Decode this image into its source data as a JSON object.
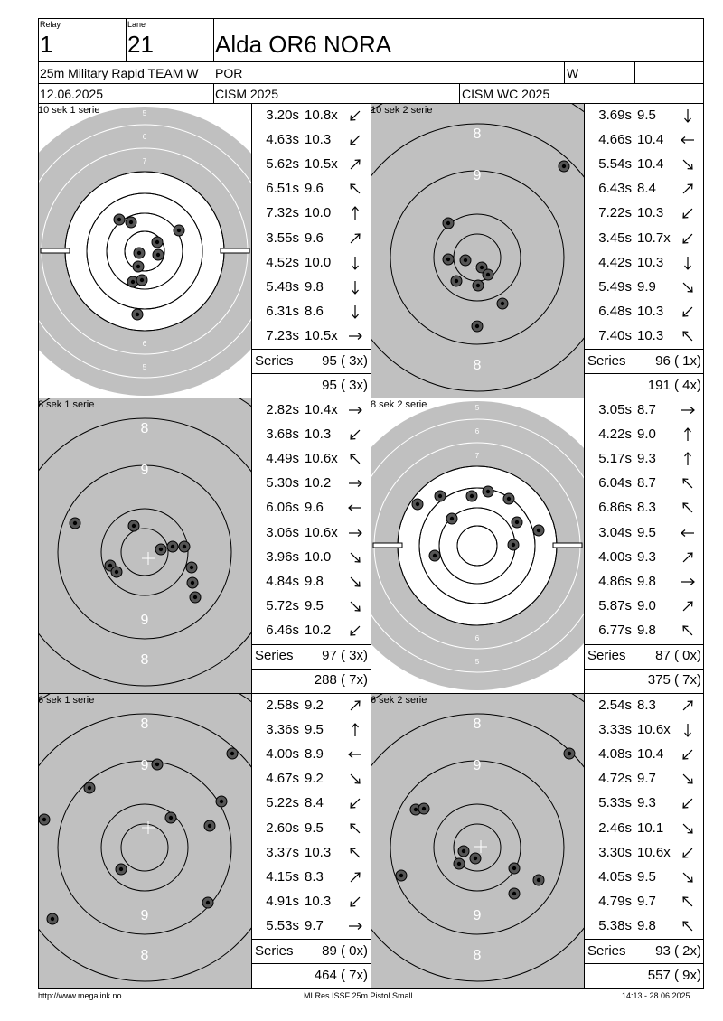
{
  "header": {
    "relay_label": "Relay",
    "relay_value": "1",
    "lane_label": "Lane",
    "lane_value": "21",
    "shooter_name": "Alda OR6 NORA",
    "event": "25m Military Rapid TEAM W",
    "nation": "POR",
    "gender": "W",
    "date": "12.06.2025",
    "competition": "CISM 2025",
    "match": "CISM WC 2025"
  },
  "panels": [
    {
      "title": "10 sek 1 serie",
      "target_type": "precision",
      "shots": [
        {
          "time": "3.20s",
          "value": "10.8x",
          "dir": "sw"
        },
        {
          "time": "4.63s",
          "value": "10.3",
          "dir": "sw"
        },
        {
          "time": "5.62s",
          "value": "10.5x",
          "dir": "ne"
        },
        {
          "time": "6.51s",
          "value": "9.6",
          "dir": "nw"
        },
        {
          "time": "7.32s",
          "value": "10.0",
          "dir": "n"
        },
        {
          "time": "3.55s",
          "value": "9.6",
          "dir": "ne"
        },
        {
          "time": "4.52s",
          "value": "10.0",
          "dir": "s"
        },
        {
          "time": "5.48s",
          "value": "9.8",
          "dir": "s"
        },
        {
          "time": "6.31s",
          "value": "8.6",
          "dir": "s"
        },
        {
          "time": "7.23s",
          "value": "10.5x",
          "dir": "e"
        }
      ],
      "series_label": "Series",
      "series_score": "95 ( 3x)",
      "total": "95 ( 3x)"
    },
    {
      "title": "10 sek 2 serie",
      "target_type": "rapid",
      "shots": [
        {
          "time": "3.69s",
          "value": "9.5",
          "dir": "s"
        },
        {
          "time": "4.66s",
          "value": "10.4",
          "dir": "w"
        },
        {
          "time": "5.54s",
          "value": "10.4",
          "dir": "se"
        },
        {
          "time": "6.43s",
          "value": "8.4",
          "dir": "ne"
        },
        {
          "time": "7.22s",
          "value": "10.3",
          "dir": "sw"
        },
        {
          "time": "3.45s",
          "value": "10.7x",
          "dir": "sw"
        },
        {
          "time": "4.42s",
          "value": "10.3",
          "dir": "s"
        },
        {
          "time": "5.49s",
          "value": "9.9",
          "dir": "se"
        },
        {
          "time": "6.48s",
          "value": "10.3",
          "dir": "sw"
        },
        {
          "time": "7.40s",
          "value": "10.3",
          "dir": "nw"
        }
      ],
      "series_label": "Series",
      "series_score": "96 ( 1x)",
      "total": "191 ( 4x)"
    },
    {
      "title": "8 sek 1 serie",
      "target_type": "rapid",
      "shots": [
        {
          "time": "2.82s",
          "value": "10.4x",
          "dir": "e"
        },
        {
          "time": "3.68s",
          "value": "10.3",
          "dir": "sw"
        },
        {
          "time": "4.49s",
          "value": "10.6x",
          "dir": "nw"
        },
        {
          "time": "5.30s",
          "value": "10.2",
          "dir": "e"
        },
        {
          "time": "6.06s",
          "value": "9.6",
          "dir": "w"
        },
        {
          "time": "3.06s",
          "value": "10.6x",
          "dir": "e"
        },
        {
          "time": "3.96s",
          "value": "10.0",
          "dir": "se"
        },
        {
          "time": "4.84s",
          "value": "9.8",
          "dir": "se"
        },
        {
          "time": "5.72s",
          "value": "9.5",
          "dir": "se"
        },
        {
          "time": "6.46s",
          "value": "10.2",
          "dir": "sw"
        }
      ],
      "series_label": "Series",
      "series_score": "97 ( 3x)",
      "total": "288 ( 7x)"
    },
    {
      "title": "8 sek 2 serie",
      "target_type": "precision",
      "shots": [
        {
          "time": "3.05s",
          "value": "8.7",
          "dir": "e"
        },
        {
          "time": "4.22s",
          "value": "9.0",
          "dir": "n"
        },
        {
          "time": "5.17s",
          "value": "9.3",
          "dir": "n"
        },
        {
          "time": "6.04s",
          "value": "8.7",
          "dir": "nw"
        },
        {
          "time": "6.86s",
          "value": "8.3",
          "dir": "nw"
        },
        {
          "time": "3.04s",
          "value": "9.5",
          "dir": "w"
        },
        {
          "time": "4.00s",
          "value": "9.3",
          "dir": "ne"
        },
        {
          "time": "4.86s",
          "value": "9.8",
          "dir": "e"
        },
        {
          "time": "5.87s",
          "value": "9.0",
          "dir": "ne"
        },
        {
          "time": "6.77s",
          "value": "9.8",
          "dir": "nw"
        }
      ],
      "series_label": "Series",
      "series_score": "87 ( 0x)",
      "total": "375 ( 7x)"
    },
    {
      "title": "6 sek 1 serie",
      "target_type": "rapid",
      "shots": [
        {
          "time": "2.58s",
          "value": "9.2",
          "dir": "ne"
        },
        {
          "time": "3.36s",
          "value": "9.5",
          "dir": "n"
        },
        {
          "time": "4.00s",
          "value": "8.9",
          "dir": "w"
        },
        {
          "time": "4.67s",
          "value": "9.2",
          "dir": "se"
        },
        {
          "time": "5.22s",
          "value": "8.4",
          "dir": "sw"
        },
        {
          "time": "2.60s",
          "value": "9.5",
          "dir": "nw"
        },
        {
          "time": "3.37s",
          "value": "10.3",
          "dir": "nw"
        },
        {
          "time": "4.15s",
          "value": "8.3",
          "dir": "ne"
        },
        {
          "time": "4.91s",
          "value": "10.3",
          "dir": "sw"
        },
        {
          "time": "5.53s",
          "value": "9.7",
          "dir": "e"
        }
      ],
      "series_label": "Series",
      "series_score": "89 ( 0x)",
      "total": "464 ( 7x)"
    },
    {
      "title": "6 sek 2 serie",
      "target_type": "rapid",
      "shots": [
        {
          "time": "2.54s",
          "value": "8.3",
          "dir": "ne"
        },
        {
          "time": "3.33s",
          "value": "10.6x",
          "dir": "s"
        },
        {
          "time": "4.08s",
          "value": "10.4",
          "dir": "sw"
        },
        {
          "time": "4.72s",
          "value": "9.7",
          "dir": "se"
        },
        {
          "time": "5.33s",
          "value": "9.3",
          "dir": "sw"
        },
        {
          "time": "2.46s",
          "value": "10.1",
          "dir": "se"
        },
        {
          "time": "3.30s",
          "value": "10.6x",
          "dir": "sw"
        },
        {
          "time": "4.05s",
          "value": "9.5",
          "dir": "se"
        },
        {
          "time": "4.79s",
          "value": "9.7",
          "dir": "nw"
        },
        {
          "time": "5.38s",
          "value": "9.8",
          "dir": "nw"
        }
      ],
      "series_label": "Series",
      "series_score": "93 ( 2x)",
      "total": "557 ( 9x)"
    }
  ],
  "precision_labels": [
    "5",
    "6",
    "7",
    "8",
    "9",
    "10",
    "9",
    "8",
    "7",
    "6",
    "5"
  ],
  "rapid_labels": [
    "8",
    "9",
    "9",
    "8"
  ],
  "footer": {
    "left": "http://www.megalink.no",
    "center": "MLRes ISSF 25m Pistol Small",
    "right": "14:13 - 28.06.2025"
  },
  "colors": {
    "target_gray": "#c0c0c0",
    "ink": "#000000"
  }
}
